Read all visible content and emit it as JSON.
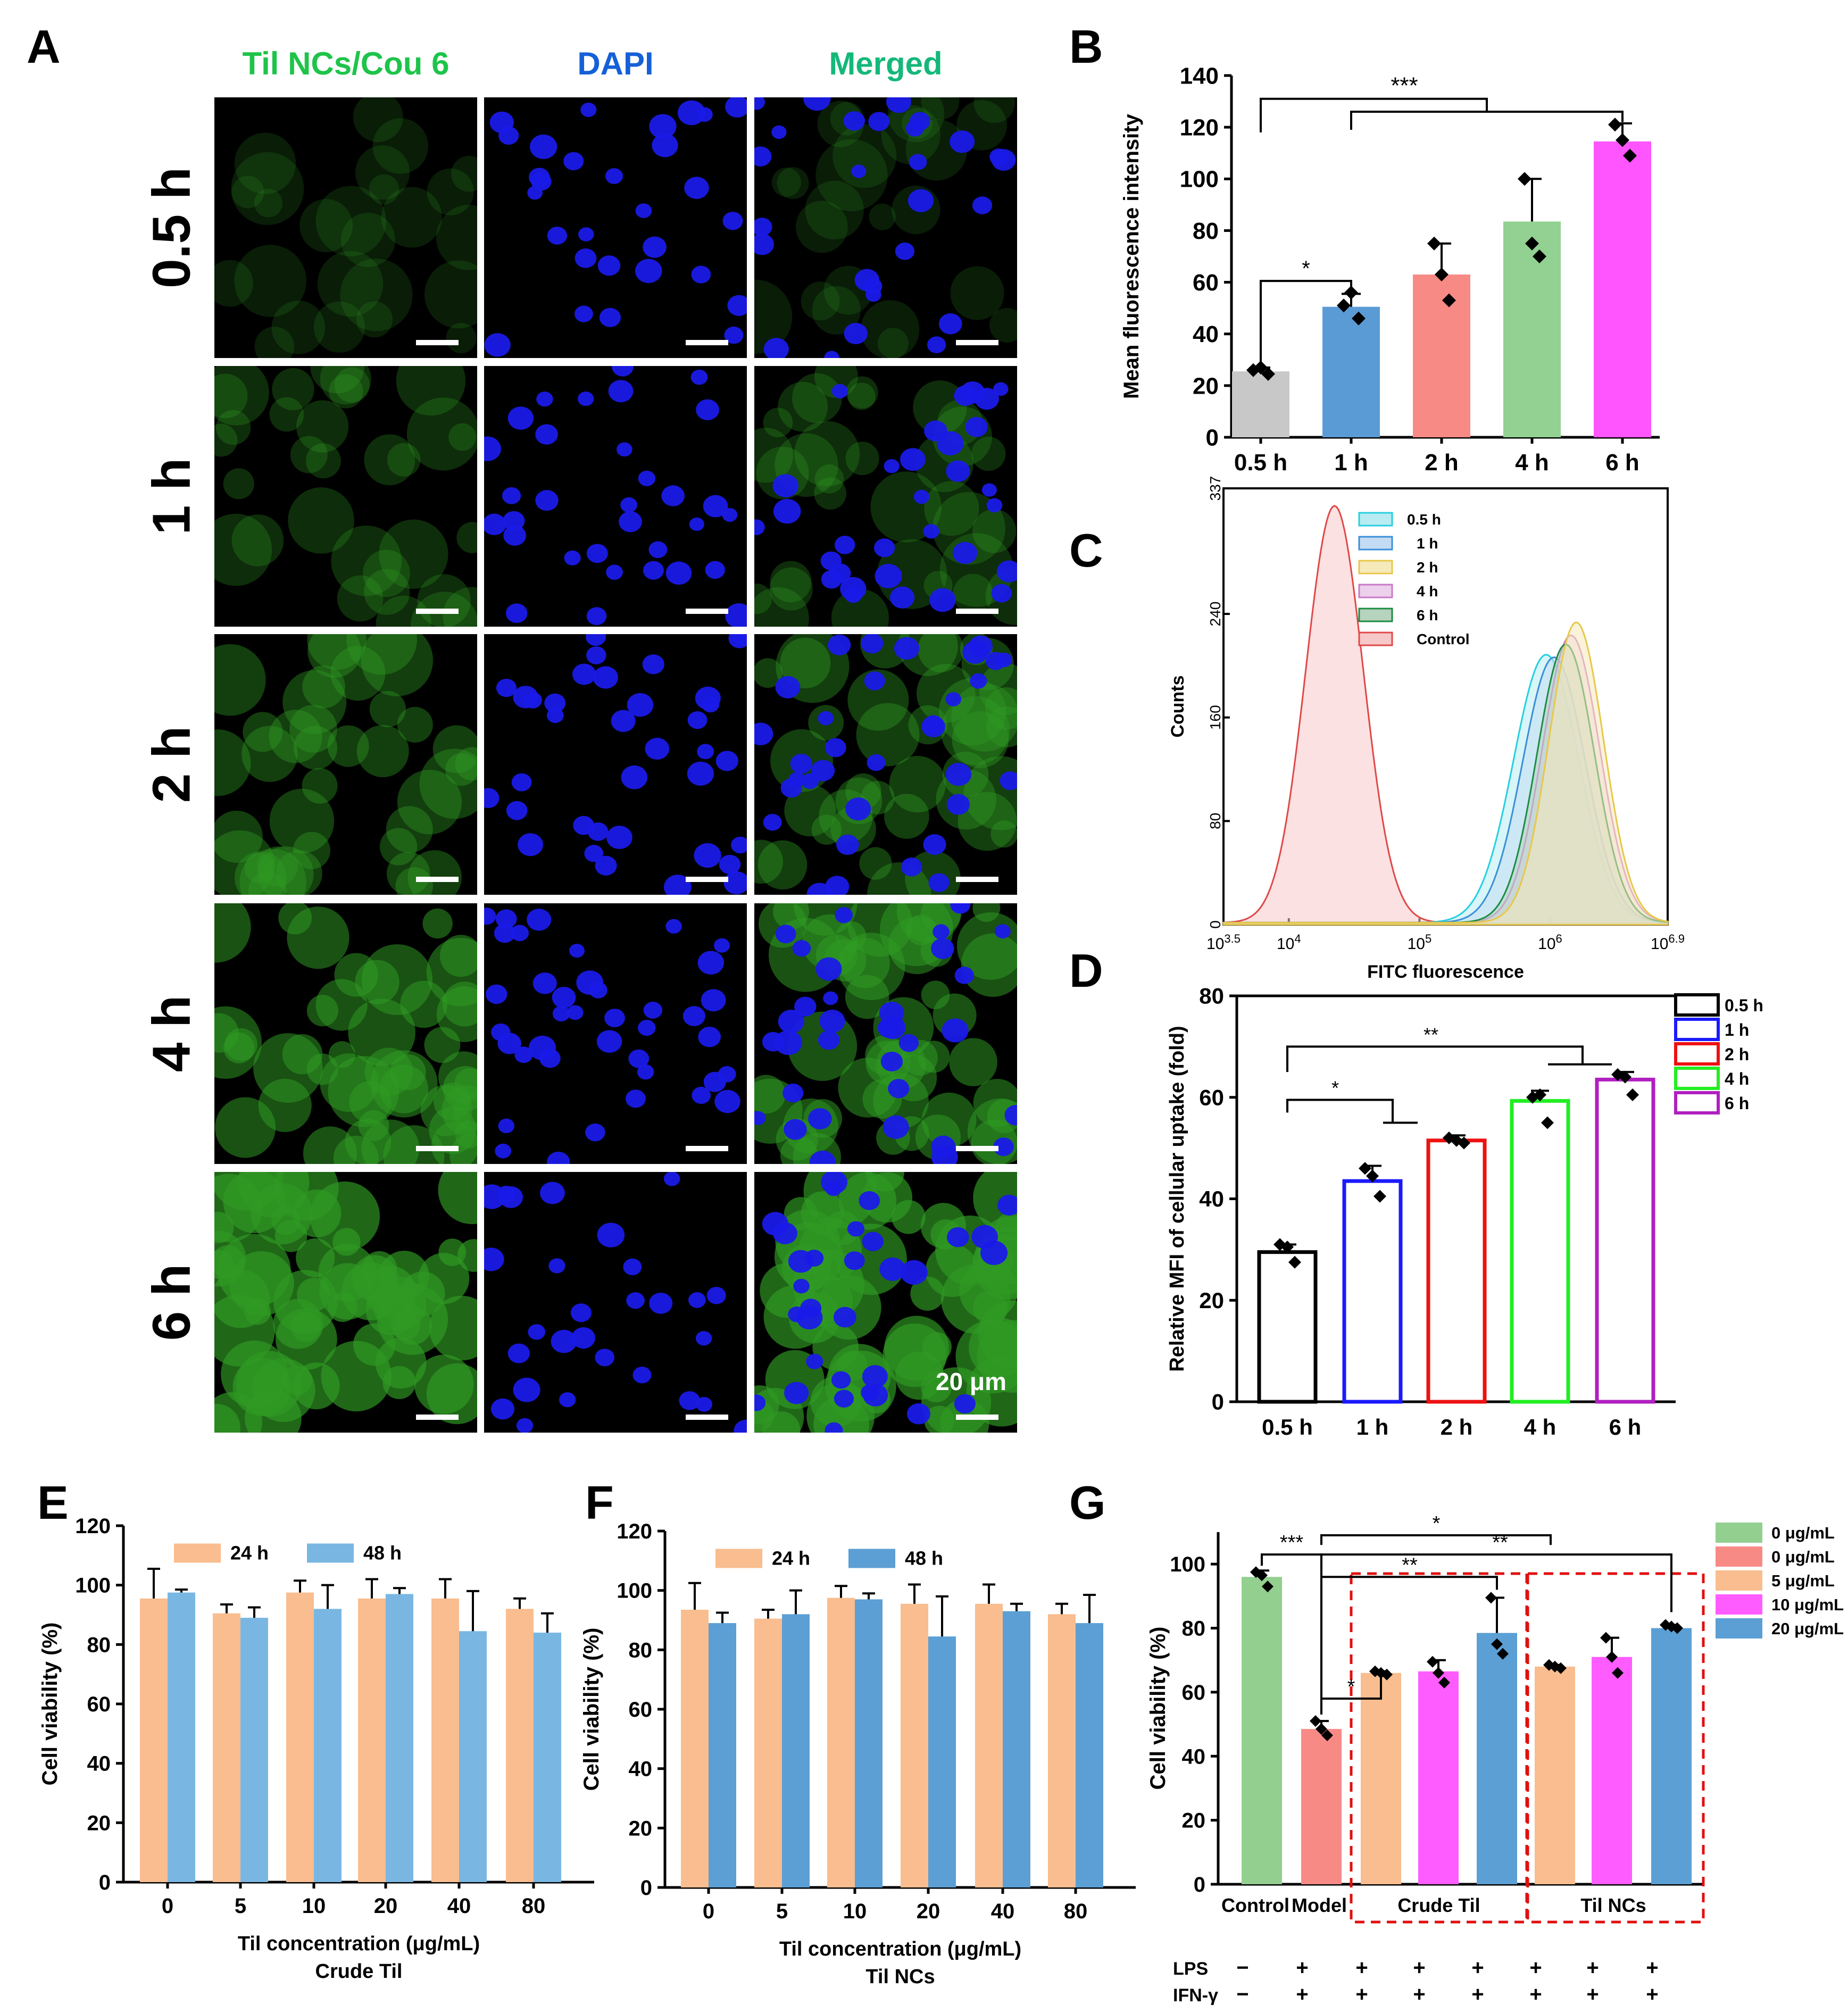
{
  "panel_a": {
    "letter": "A",
    "headers": [
      "Til NCs/Cou 6",
      "DAPI",
      "Merged"
    ],
    "header_colors": [
      "#1ec44a",
      "#1560d8",
      "#14b87a"
    ],
    "rows": [
      "0.5 h",
      "1 h",
      "2 h",
      "4 h",
      "6 h"
    ],
    "green_level": [
      0.12,
      0.3,
      0.5,
      0.75,
      1.0
    ],
    "scale_bar_label": "20 μm"
  },
  "chart_data": [
    {
      "panel": "B",
      "type": "bar",
      "categories": [
        "0.5 h",
        "1 h",
        "2 h",
        "4 h",
        "6 h"
      ],
      "values": [
        25.5,
        50.5,
        63,
        83.5,
        114.5
      ],
      "errors": [
        1.5,
        5,
        12,
        16.5,
        7
      ],
      "points": [
        [
          26,
          27,
          24.5
        ],
        [
          51,
          56,
          46
        ],
        [
          75,
          63,
          53
        ],
        [
          100,
          75,
          70
        ],
        [
          121,
          115,
          109
        ]
      ],
      "colors": [
        "#c8c8c8",
        "#5b9bd5",
        "#f88a86",
        "#92d191",
        "#ff55ff"
      ],
      "ylabel": "Mean fluorescence intensity",
      "ylim": [
        0,
        140
      ],
      "yticks": [
        0,
        20,
        40,
        60,
        80,
        100,
        120,
        140
      ],
      "significance": [
        "*",
        "***"
      ]
    },
    {
      "panel": "C",
      "type": "area",
      "xlabel": "FITC fluorescence",
      "ylabel": "Counts",
      "xlim_log": [
        3.5,
        6.9
      ],
      "xticks": [
        {
          "base": "10",
          "exp": "3.5",
          "v": 3.5
        },
        {
          "base": "10",
          "exp": "4",
          "v": 4
        },
        {
          "base": "10",
          "exp": "5",
          "v": 5
        },
        {
          "base": "10",
          "exp": "6",
          "v": 6
        },
        {
          "base": "10",
          "exp": "6.9",
          "v": 6.9
        }
      ],
      "yticks": [
        {
          "label": "0",
          "v": 0
        },
        {
          "label": "80",
          "v": 80
        },
        {
          "label": "160",
          "v": 160
        },
        {
          "label": "240",
          "v": 240
        },
        {
          "label": "337",
          "v": 337
        }
      ],
      "ylim": [
        0,
        337
      ],
      "series": [
        {
          "name": "0.5 h",
          "color": "#27cfe0",
          "fill": "#b8ecf2",
          "peak_log": 5.97,
          "peak": 207,
          "sigma": 0.25
        },
        {
          "name": "1 h",
          "color": "#3b8fd8",
          "fill": "#c4dcf3",
          "peak_log": 6.03,
          "peak": 205,
          "sigma": 0.24
        },
        {
          "name": "2 h",
          "color": "#e7c84a",
          "fill": "#f6eabb",
          "peak_log": 6.2,
          "peak": 232,
          "sigma": 0.21
        },
        {
          "name": "4 h",
          "color": "#c979c9",
          "fill": "#ecd0ec",
          "peak_log": 6.16,
          "peak": 222,
          "sigma": 0.22
        },
        {
          "name": "6 h",
          "color": "#1e8c44",
          "fill": "#b6d3bd",
          "peak_log": 6.12,
          "peak": 215,
          "sigma": 0.22
        },
        {
          "name": "Control",
          "color": "#e04848",
          "fill": "#f7c8c8",
          "peak_log": 4.35,
          "peak": 322,
          "sigma": 0.22
        }
      ]
    },
    {
      "panel": "D",
      "type": "bar",
      "categories": [
        "0.5 h",
        "1 h",
        "2 h",
        "4 h",
        "6 h"
      ],
      "values": [
        29.5,
        43.5,
        51.5,
        59.3,
        63.5
      ],
      "errors": [
        1.5,
        3,
        1,
        2,
        1.5
      ],
      "points": [
        [
          31,
          30.5,
          27.5
        ],
        [
          46,
          44.5,
          40.5
        ],
        [
          52,
          51.5,
          51
        ],
        [
          60,
          60.5,
          55
        ],
        [
          64.5,
          64,
          60.5
        ]
      ],
      "colors": [
        "#000000",
        "#1a1aff",
        "#ee1111",
        "#22ee22",
        "#b01fc0"
      ],
      "legend": [
        "0.5 h",
        "1 h",
        "2 h",
        "4 h",
        "6 h"
      ],
      "ylabel": "Relative MFI of cellular uptake (fold)",
      "ylim": [
        0,
        80
      ],
      "yticks": [
        0,
        20,
        40,
        60,
        80
      ],
      "significance": [
        "*",
        "**"
      ]
    },
    {
      "panel": "E",
      "type": "bar",
      "categories": [
        "0",
        "5",
        "10",
        "20",
        "40",
        "80"
      ],
      "series": [
        {
          "name": "24 h",
          "color": "#f9bd8f",
          "values": [
            95.5,
            90.5,
            97.5,
            95.5,
            95.5,
            92
          ],
          "errors": [
            10,
            3,
            4,
            6.5,
            6.5,
            3.5
          ]
        },
        {
          "name": "48 h",
          "color": "#79b7e2",
          "values": [
            97.5,
            89,
            92,
            97,
            84.5,
            84
          ],
          "errors": [
            1,
            3.5,
            8,
            2,
            13.5,
            6.5
          ]
        }
      ],
      "ylabel": "Cell viability (%)",
      "xlabel": "Til concentration (μg/mL)",
      "subtitle": "Crude Til",
      "ylim": [
        0,
        120
      ],
      "yticks": [
        0,
        20,
        40,
        60,
        80,
        100,
        120
      ]
    },
    {
      "panel": "F",
      "type": "bar",
      "categories": [
        "0",
        "5",
        "10",
        "20",
        "40",
        "80"
      ],
      "series": [
        {
          "name": "24 h",
          "color": "#f9bd8f",
          "values": [
            93.5,
            90.5,
            97.5,
            95.5,
            95.5,
            92
          ],
          "errors": [
            9,
            3,
            4,
            6.5,
            6.5,
            3.5
          ]
        },
        {
          "name": "48 h",
          "color": "#5b9fd4",
          "values": [
            89,
            92,
            97,
            84.5,
            93,
            89
          ],
          "errors": [
            3.5,
            8,
            2,
            13.5,
            2.5,
            9.5
          ]
        }
      ],
      "ylabel": "Cell viability (%)",
      "xlabel": "Til concentration (μg/mL)",
      "subtitle": "Til NCs",
      "ylim": [
        0,
        120
      ],
      "yticks": [
        0,
        20,
        40,
        60,
        80,
        100,
        120
      ]
    },
    {
      "panel": "G",
      "type": "bar",
      "values": [
        96,
        48.5,
        66,
        66.5,
        78.5,
        68,
        71,
        80
      ],
      "errors": [
        2,
        2.5,
        0.5,
        3.5,
        11,
        0.5,
        6,
        1
      ],
      "points": [
        [
          97.5,
          96.5,
          93
        ],
        [
          51,
          48.5,
          46.5
        ],
        [
          66.5,
          66,
          65.5
        ],
        [
          69.5,
          66,
          63
        ],
        [
          89.5,
          75,
          72
        ],
        [
          68.5,
          68,
          67.5
        ],
        [
          77,
          71,
          66
        ],
        [
          81,
          80.5,
          80
        ]
      ],
      "colors": [
        "#93cf8f",
        "#f88a86",
        "#f9bd8f",
        "#ff5cff",
        "#5b9fd4",
        "#f9bd8f",
        "#ff5cff",
        "#5b9fd4"
      ],
      "legend": [
        {
          "label": "0 μg/mL",
          "color": "#93cf8f"
        },
        {
          "label": "0 μg/mL",
          "color": "#f88a86"
        },
        {
          "label": "5 μg/mL",
          "color": "#f9bd8f"
        },
        {
          "label": "10 μg/mL",
          "color": "#ff5cff"
        },
        {
          "label": "20 μg/mL",
          "color": "#5b9fd4"
        }
      ],
      "xlabels": [
        "Control",
        "Model",
        "Crude Til",
        "Til NCs"
      ],
      "ylabel": "Cell viability (%)",
      "ylim": [
        0,
        110
      ],
      "yticks": [
        0,
        20,
        40,
        60,
        80,
        100
      ],
      "treatments": [
        {
          "label": "LPS",
          "marks": [
            "−",
            "+",
            "+",
            "+",
            "+",
            "+",
            "+",
            "+"
          ]
        },
        {
          "label": "IFN-γ",
          "marks": [
            "−",
            "+",
            "+",
            "+",
            "+",
            "+",
            "+",
            "+"
          ]
        }
      ],
      "significance": [
        "***",
        "*",
        "**",
        "**",
        "*"
      ]
    }
  ]
}
